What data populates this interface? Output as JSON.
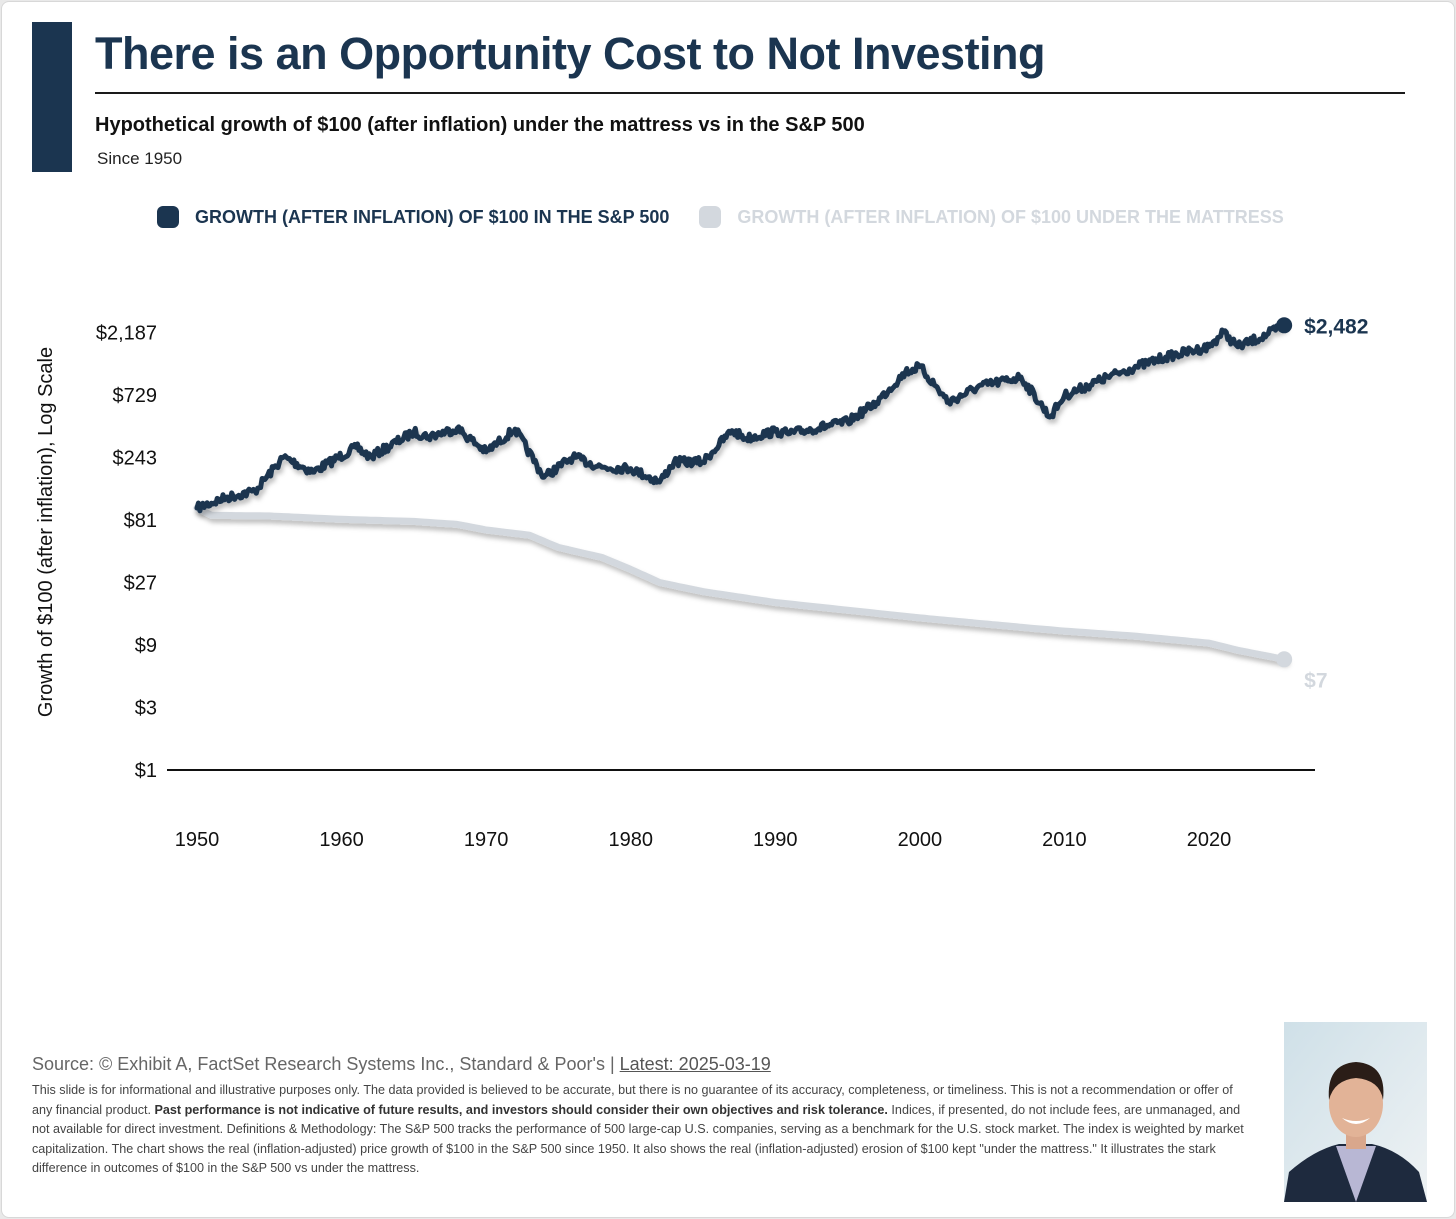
{
  "header": {
    "title": "There is an Opportunity Cost to Not Investing",
    "subtitle": "Hypothetical growth of $100 (after inflation) under the mattress vs in the S&P 500",
    "since": "Since 1950"
  },
  "colors": {
    "sp500": "#1b3550",
    "mattress": "#d3d8de",
    "accent": "#1b3550"
  },
  "chart_data": {
    "type": "line",
    "title": "Hypothetical growth of $100 (after inflation) under the mattress vs in the S&P 500",
    "xlabel": "",
    "ylabel": "Growth of $100 (after inflation), Log Scale",
    "yscale": "log",
    "ylim": [
      1,
      2187
    ],
    "xlim": [
      1950,
      2025.2
    ],
    "y_ticks": [
      {
        "v": 1,
        "label": "$1"
      },
      {
        "v": 3,
        "label": "$3"
      },
      {
        "v": 9,
        "label": "$9"
      },
      {
        "v": 27,
        "label": "$27"
      },
      {
        "v": 81,
        "label": "$81"
      },
      {
        "v": 243,
        "label": "$243"
      },
      {
        "v": 729,
        "label": "$729"
      },
      {
        "v": 2187,
        "label": "$2,187"
      }
    ],
    "x_ticks": [
      {
        "v": 1950,
        "label": "1950"
      },
      {
        "v": 1960,
        "label": "1960"
      },
      {
        "v": 1970,
        "label": "1970"
      },
      {
        "v": 1980,
        "label": "1980"
      },
      {
        "v": 1990,
        "label": "1990"
      },
      {
        "v": 2000,
        "label": "2000"
      },
      {
        "v": 2010,
        "label": "2010"
      },
      {
        "v": 2020,
        "label": "2020"
      }
    ],
    "legend_position": "top",
    "series": [
      {
        "name": "GROWTH (AFTER INFLATION) OF $100 IN THE S&P 500",
        "end_label": "$2,482",
        "x": [
          1950,
          1952,
          1954,
          1956,
          1958,
          1961,
          1962,
          1965,
          1966,
          1968,
          1970,
          1972,
          1974,
          1976,
          1978,
          1980,
          1982,
          1983,
          1985,
          1987,
          1988,
          1990,
          1991,
          1995,
          1997,
          1999,
          2000,
          2002,
          2004,
          2007,
          2009,
          2010,
          2013,
          2015,
          2017,
          2020,
          2021,
          2022,
          2024,
          2025.2
        ],
        "values": [
          100,
          120,
          135,
          245,
          188,
          290,
          245,
          380,
          350,
          405,
          268,
          400,
          172,
          245,
          205,
          200,
          158,
          225,
          225,
          390,
          340,
          385,
          370,
          455,
          640,
          1090,
          1200,
          640,
          840,
          1000,
          495,
          720,
          1000,
          1200,
          1420,
          1700,
          2200,
          1700,
          2100,
          2482
        ]
      },
      {
        "name": "GROWTH (AFTER INFLATION) OF $100 UNDER THE MATTRESS",
        "end_label": "$7",
        "x": [
          1950,
          1951,
          1955,
          1960,
          1965,
          1968,
          1970,
          1973,
          1975,
          1978,
          1980,
          1982,
          1985,
          1990,
          2000,
          2008,
          2010,
          2015,
          2020,
          2022,
          2025.2
        ],
        "values": [
          100,
          88,
          87,
          82,
          79,
          75,
          68,
          62,
          50,
          42,
          34,
          27,
          23,
          19,
          14.5,
          12,
          11.5,
          10.5,
          9.3,
          8.2,
          7
        ]
      }
    ]
  },
  "footer": {
    "source_prefix": "Source: © Exhibit A, FactSet Research Systems Inc., Standard & Poor's | ",
    "latest": "Latest: 2025-03-19",
    "disclaimer_1": "This slide is for informational and illustrative purposes only. The data provided is believed to be accurate, but there is no guarantee of its accuracy, completeness, or timeliness. This is not a recommendation or offer of any financial product. ",
    "disclaimer_bold": "Past performance is not indicative of future results, and investors should consider their own objectives and risk tolerance.",
    "disclaimer_2": " Indices, if presented, do not include fees, are unmanaged, and not available for direct investment. Definitions & Methodology: The S&P 500 tracks the performance of 500 large-cap U.S. companies, serving as a benchmark for the U.S. stock market. The index is weighted by market capitalization. The chart shows the real (inflation-adjusted) price growth of $100 in the S&P 500 since 1950. It also shows the real (inflation-adjusted) erosion of $100 kept \"under the mattress.\" It illustrates the stark difference in outcomes of $100 in the S&P 500 vs under the mattress."
  }
}
